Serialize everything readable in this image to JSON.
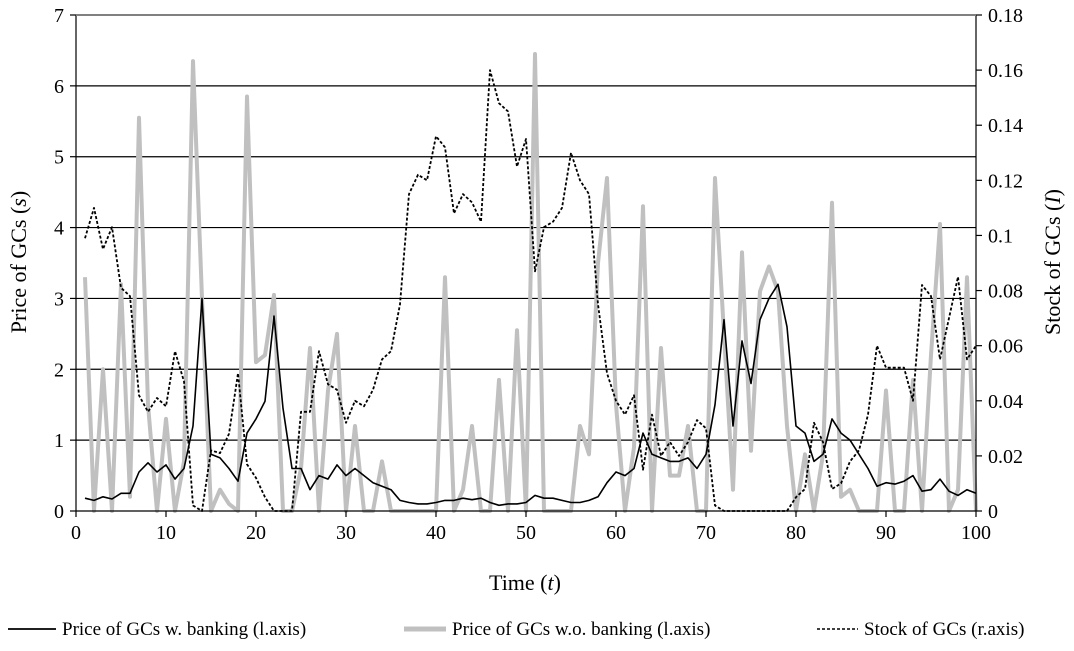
{
  "chart_data": {
    "type": "line",
    "title": "",
    "xlabel_prefix": "Time (",
    "xlabel_var": "t",
    "xlabel_suffix": ")",
    "ylabel_prefix": "Price of GCs (",
    "ylabel_var": "s",
    "ylabel_suffix": ")",
    "y2label_prefix": "Stock of GCs (",
    "y2label_var": "I",
    "y2label_suffix": ")",
    "xlim": [
      0,
      100
    ],
    "ylim": [
      0,
      7
    ],
    "y2lim": [
      0,
      0.18
    ],
    "xticks": [
      0,
      10,
      20,
      30,
      40,
      50,
      60,
      70,
      80,
      90,
      100
    ],
    "yticks": [
      0,
      1,
      2,
      3,
      4,
      5,
      6,
      7
    ],
    "y2ticks": [
      0,
      0.02,
      0.04,
      0.06,
      0.08,
      0.1,
      0.12,
      0.14,
      0.16,
      0.18
    ],
    "y2tick_labels": [
      "0",
      "0.02",
      "0.04",
      "0.06",
      "0.08",
      "0.1",
      "0.12",
      "0.14",
      "0.16",
      "0.18"
    ],
    "grid": "horizontal",
    "legend_position": "bottom",
    "x": [
      1,
      2,
      3,
      4,
      5,
      6,
      7,
      8,
      9,
      10,
      11,
      12,
      13,
      14,
      15,
      16,
      17,
      18,
      19,
      20,
      21,
      22,
      23,
      24,
      25,
      26,
      27,
      28,
      29,
      30,
      31,
      32,
      33,
      34,
      35,
      36,
      37,
      38,
      39,
      40,
      41,
      42,
      43,
      44,
      45,
      46,
      47,
      48,
      49,
      50,
      51,
      52,
      53,
      54,
      55,
      56,
      57,
      58,
      59,
      60,
      61,
      62,
      63,
      64,
      65,
      66,
      67,
      68,
      69,
      70,
      71,
      72,
      73,
      74,
      75,
      76,
      77,
      78,
      79,
      80,
      81,
      82,
      83,
      84,
      85,
      86,
      87,
      88,
      89,
      90,
      91,
      92,
      93,
      94,
      95,
      96,
      97,
      98,
      99,
      100
    ],
    "series": [
      {
        "name": "Price of GCs w. banking (l.axis)",
        "axis": "left",
        "color": "#000000",
        "values": [
          0.18,
          0.15,
          0.2,
          0.17,
          0.25,
          0.25,
          0.55,
          0.68,
          0.55,
          0.65,
          0.45,
          0.6,
          1.2,
          3.0,
          0.8,
          0.75,
          0.6,
          0.42,
          1.1,
          1.3,
          1.55,
          2.75,
          1.45,
          0.6,
          0.6,
          0.3,
          0.5,
          0.45,
          0.65,
          0.5,
          0.6,
          0.5,
          0.4,
          0.35,
          0.3,
          0.15,
          0.12,
          0.1,
          0.1,
          0.12,
          0.15,
          0.15,
          0.18,
          0.16,
          0.18,
          0.12,
          0.08,
          0.1,
          0.1,
          0.12,
          0.22,
          0.18,
          0.18,
          0.15,
          0.12,
          0.12,
          0.15,
          0.2,
          0.4,
          0.55,
          0.5,
          0.6,
          1.1,
          0.8,
          0.75,
          0.7,
          0.7,
          0.75,
          0.6,
          0.8,
          1.5,
          2.7,
          1.2,
          2.4,
          1.8,
          2.7,
          3.0,
          3.2,
          2.6,
          1.2,
          1.1,
          0.7,
          0.8,
          1.3,
          1.1,
          1.0,
          0.8,
          0.6,
          0.35,
          0.4,
          0.38,
          0.42,
          0.5,
          0.28,
          0.3,
          0.45,
          0.28,
          0.22,
          0.3,
          0.25
        ]
      },
      {
        "name": "Price of GCs w.o. banking (l.axis)",
        "axis": "left",
        "color": "#c0c0c0",
        "values": [
          3.3,
          0.0,
          2.0,
          0.0,
          3.2,
          0.2,
          5.55,
          1.5,
          0.0,
          1.3,
          0.0,
          0.7,
          6.35,
          3.0,
          0.0,
          0.3,
          0.1,
          0.0,
          5.85,
          2.1,
          2.2,
          3.05,
          0.0,
          0.0,
          0.6,
          2.3,
          0.0,
          1.7,
          2.5,
          0.0,
          1.2,
          0.0,
          0.0,
          0.7,
          0.0,
          0.0,
          0.0,
          0.0,
          0.0,
          0.0,
          3.3,
          0.0,
          0.3,
          1.2,
          0.0,
          0.0,
          1.85,
          0.0,
          2.55,
          0.0,
          6.45,
          0.0,
          0.0,
          0.0,
          0.0,
          1.2,
          0.8,
          3.5,
          4.7,
          1.5,
          0.0,
          0.9,
          4.3,
          0.0,
          2.3,
          0.5,
          0.5,
          1.2,
          0.0,
          0.0,
          4.7,
          2.5,
          0.3,
          3.65,
          0.85,
          3.1,
          3.45,
          3.1,
          1.2,
          0.0,
          0.8,
          0.0,
          0.8,
          4.35,
          0.2,
          0.3,
          0.0,
          0.0,
          0.0,
          1.7,
          0.0,
          0.0,
          1.85,
          0.0,
          2.2,
          4.05,
          0.0,
          0.3,
          3.3,
          0.0
        ]
      },
      {
        "name": "Stock of GCs (r.axis)",
        "axis": "right",
        "color": "#000000",
        "values": [
          0.099,
          0.11,
          0.095,
          0.103,
          0.081,
          0.078,
          0.042,
          0.036,
          0.041,
          0.038,
          0.058,
          0.047,
          0.002,
          0.0,
          0.022,
          0.021,
          0.028,
          0.05,
          0.017,
          0.012,
          0.005,
          0.0,
          0.0,
          0.0,
          0.036,
          0.036,
          0.058,
          0.046,
          0.044,
          0.032,
          0.04,
          0.038,
          0.044,
          0.055,
          0.058,
          0.075,
          0.115,
          0.122,
          0.12,
          0.136,
          0.132,
          0.108,
          0.115,
          0.112,
          0.105,
          0.16,
          0.148,
          0.145,
          0.125,
          0.135,
          0.087,
          0.103,
          0.105,
          0.11,
          0.13,
          0.12,
          0.115,
          0.075,
          0.05,
          0.04,
          0.035,
          0.042,
          0.015,
          0.035,
          0.02,
          0.025,
          0.02,
          0.025,
          0.033,
          0.03,
          0.002,
          0.0,
          0.0,
          0.0,
          0.0,
          0.0,
          0.0,
          0.0,
          0.0,
          0.005,
          0.008,
          0.032,
          0.025,
          0.008,
          0.01,
          0.018,
          0.022,
          0.035,
          0.06,
          0.052,
          0.052,
          0.052,
          0.04,
          0.082,
          0.078,
          0.055,
          0.07,
          0.085,
          0.055,
          0.06
        ]
      }
    ]
  }
}
